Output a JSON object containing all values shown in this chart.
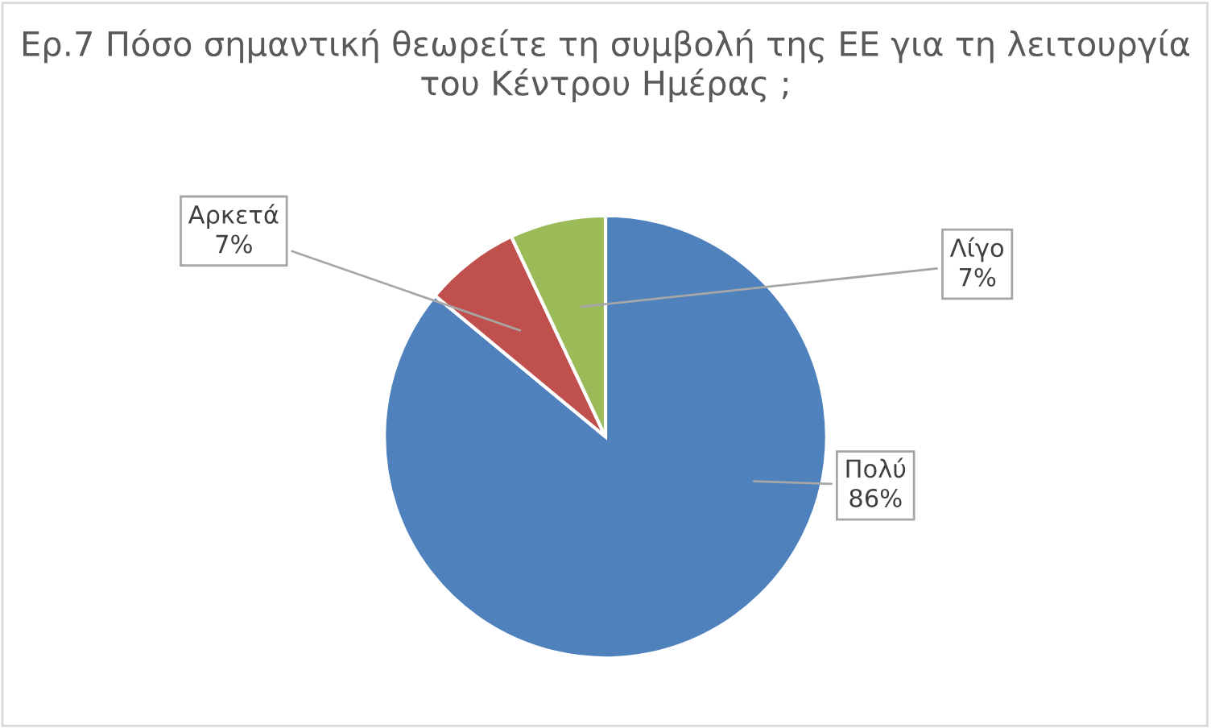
{
  "chart_data": {
    "type": "pie",
    "title": "Ερ.7 Πόσο σημαντική θεωρείτε τη συμβολή της ΕΕ για τη λειτουργία του Κέντρου Ημέρας ;",
    "categories": [
      "Πολύ",
      "Αρκετά",
      "Λίγο"
    ],
    "values": [
      86,
      7,
      7
    ],
    "colors": [
      "#4f81bd",
      "#c0504d",
      "#9bbb59"
    ],
    "value_labels": [
      "86%",
      "7%",
      "7%"
    ],
    "legend": false
  }
}
